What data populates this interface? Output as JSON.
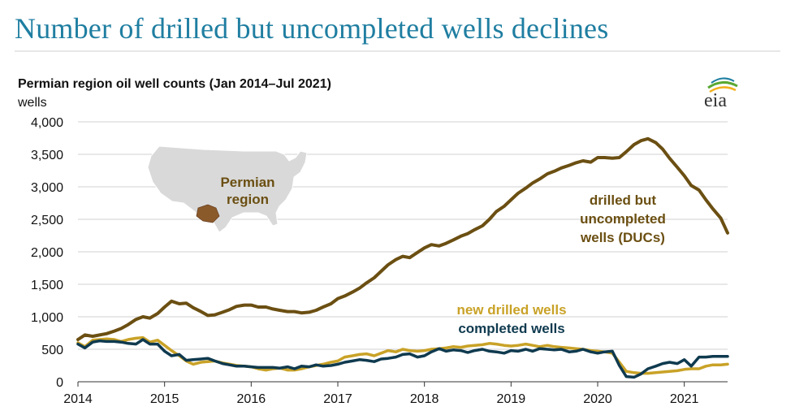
{
  "headline": "Number of drilled but uncompleted wells declines",
  "logo": "eia",
  "colors": {
    "headline": "#1f7ea1",
    "duc": "#6b4f12",
    "new_drilled": "#c9a227",
    "completed": "#0f3a4f",
    "map_fill": "#d9d9d9",
    "permian_fill": "#8b5a2b",
    "grid": "#d0d0d0"
  },
  "map": {
    "label_line1": "Permian",
    "label_line2": "region",
    "icon": "us-map-icon"
  },
  "chart_data": {
    "type": "line",
    "title": "Permian region oil well counts (Jan 2014–Jul 2021)",
    "ylabel": "wells",
    "xlabel": "",
    "xlim": [
      2014,
      2021.5
    ],
    "ylim": [
      0,
      4000
    ],
    "y_ticks": [
      0,
      500,
      1000,
      1500,
      2000,
      2500,
      3000,
      3500,
      4000
    ],
    "y_tick_labels": [
      "0",
      "500",
      "1,000",
      "1,500",
      "2,000",
      "2,500",
      "3,000",
      "3,500",
      "4,000"
    ],
    "x_ticks": [
      2014,
      2015,
      2016,
      2017,
      2018,
      2019,
      2020,
      2021
    ],
    "x_tick_labels": [
      "2014",
      "2015",
      "2016",
      "2017",
      "2018",
      "2019",
      "2020",
      "2021"
    ],
    "grid": true,
    "series": [
      {
        "name": "drilled but uncompleted wells (DUCs)",
        "label_lines": [
          "drilled but",
          "uncompleted",
          "wells (DUCs)"
        ],
        "color": "#6b4f12",
        "points": [
          [
            2014.0,
            650
          ],
          [
            2014.08,
            720
          ],
          [
            2014.17,
            700
          ],
          [
            2014.25,
            720
          ],
          [
            2014.33,
            740
          ],
          [
            2014.42,
            780
          ],
          [
            2014.5,
            820
          ],
          [
            2014.58,
            880
          ],
          [
            2014.67,
            960
          ],
          [
            2014.75,
            1000
          ],
          [
            2014.83,
            980
          ],
          [
            2014.92,
            1050
          ],
          [
            2015.0,
            1150
          ],
          [
            2015.08,
            1240
          ],
          [
            2015.17,
            1200
          ],
          [
            2015.25,
            1210
          ],
          [
            2015.33,
            1140
          ],
          [
            2015.42,
            1080
          ],
          [
            2015.5,
            1020
          ],
          [
            2015.58,
            1030
          ],
          [
            2015.67,
            1070
          ],
          [
            2015.75,
            1110
          ],
          [
            2015.83,
            1160
          ],
          [
            2015.92,
            1180
          ],
          [
            2016.0,
            1180
          ],
          [
            2016.08,
            1150
          ],
          [
            2016.17,
            1150
          ],
          [
            2016.25,
            1120
          ],
          [
            2016.33,
            1100
          ],
          [
            2016.42,
            1080
          ],
          [
            2016.5,
            1080
          ],
          [
            2016.58,
            1060
          ],
          [
            2016.67,
            1070
          ],
          [
            2016.75,
            1100
          ],
          [
            2016.83,
            1150
          ],
          [
            2016.92,
            1200
          ],
          [
            2017.0,
            1280
          ],
          [
            2017.08,
            1320
          ],
          [
            2017.17,
            1380
          ],
          [
            2017.25,
            1440
          ],
          [
            2017.33,
            1520
          ],
          [
            2017.42,
            1600
          ],
          [
            2017.5,
            1700
          ],
          [
            2017.58,
            1800
          ],
          [
            2017.67,
            1880
          ],
          [
            2017.75,
            1930
          ],
          [
            2017.83,
            1910
          ],
          [
            2017.92,
            1990
          ],
          [
            2018.0,
            2060
          ],
          [
            2018.08,
            2110
          ],
          [
            2018.17,
            2090
          ],
          [
            2018.25,
            2130
          ],
          [
            2018.33,
            2180
          ],
          [
            2018.42,
            2240
          ],
          [
            2018.5,
            2280
          ],
          [
            2018.58,
            2340
          ],
          [
            2018.67,
            2400
          ],
          [
            2018.75,
            2500
          ],
          [
            2018.83,
            2620
          ],
          [
            2018.92,
            2700
          ],
          [
            2019.0,
            2800
          ],
          [
            2019.08,
            2900
          ],
          [
            2019.17,
            2980
          ],
          [
            2019.25,
            3060
          ],
          [
            2019.33,
            3120
          ],
          [
            2019.42,
            3200
          ],
          [
            2019.5,
            3240
          ],
          [
            2019.58,
            3290
          ],
          [
            2019.67,
            3330
          ],
          [
            2019.75,
            3370
          ],
          [
            2019.83,
            3400
          ],
          [
            2019.92,
            3380
          ],
          [
            2020.0,
            3450
          ],
          [
            2020.08,
            3450
          ],
          [
            2020.17,
            3440
          ],
          [
            2020.25,
            3450
          ],
          [
            2020.33,
            3540
          ],
          [
            2020.42,
            3650
          ],
          [
            2020.5,
            3710
          ],
          [
            2020.58,
            3740
          ],
          [
            2020.67,
            3680
          ],
          [
            2020.75,
            3580
          ],
          [
            2020.83,
            3440
          ],
          [
            2020.92,
            3300
          ],
          [
            2021.0,
            3170
          ],
          [
            2021.08,
            3020
          ],
          [
            2021.17,
            2950
          ],
          [
            2021.25,
            2800
          ],
          [
            2021.33,
            2660
          ],
          [
            2021.42,
            2520
          ],
          [
            2021.5,
            2290
          ]
        ]
      },
      {
        "name": "new drilled wells",
        "label_lines": [
          "new drilled wells"
        ],
        "color": "#c9a227",
        "points": [
          [
            2014.0,
            600
          ],
          [
            2014.08,
            540
          ],
          [
            2014.17,
            640
          ],
          [
            2014.25,
            650
          ],
          [
            2014.33,
            660
          ],
          [
            2014.42,
            650
          ],
          [
            2014.5,
            620
          ],
          [
            2014.58,
            650
          ],
          [
            2014.67,
            670
          ],
          [
            2014.75,
            680
          ],
          [
            2014.83,
            610
          ],
          [
            2014.92,
            640
          ],
          [
            2015.0,
            560
          ],
          [
            2015.08,
            480
          ],
          [
            2015.17,
            400
          ],
          [
            2015.25,
            320
          ],
          [
            2015.33,
            270
          ],
          [
            2015.42,
            300
          ],
          [
            2015.5,
            310
          ],
          [
            2015.58,
            320
          ],
          [
            2015.67,
            290
          ],
          [
            2015.75,
            270
          ],
          [
            2015.83,
            250
          ],
          [
            2015.92,
            240
          ],
          [
            2016.0,
            230
          ],
          [
            2016.08,
            200
          ],
          [
            2016.17,
            180
          ],
          [
            2016.25,
            200
          ],
          [
            2016.33,
            210
          ],
          [
            2016.42,
            180
          ],
          [
            2016.5,
            180
          ],
          [
            2016.58,
            200
          ],
          [
            2016.67,
            230
          ],
          [
            2016.75,
            250
          ],
          [
            2016.83,
            270
          ],
          [
            2016.92,
            300
          ],
          [
            2017.0,
            320
          ],
          [
            2017.08,
            380
          ],
          [
            2017.17,
            400
          ],
          [
            2017.25,
            420
          ],
          [
            2017.33,
            430
          ],
          [
            2017.42,
            400
          ],
          [
            2017.5,
            440
          ],
          [
            2017.58,
            480
          ],
          [
            2017.67,
            460
          ],
          [
            2017.75,
            500
          ],
          [
            2017.83,
            480
          ],
          [
            2017.92,
            470
          ],
          [
            2018.0,
            480
          ],
          [
            2018.08,
            500
          ],
          [
            2018.17,
            510
          ],
          [
            2018.25,
            520
          ],
          [
            2018.33,
            540
          ],
          [
            2018.42,
            530
          ],
          [
            2018.5,
            550
          ],
          [
            2018.58,
            560
          ],
          [
            2018.67,
            570
          ],
          [
            2018.75,
            590
          ],
          [
            2018.83,
            580
          ],
          [
            2018.92,
            560
          ],
          [
            2019.0,
            550
          ],
          [
            2019.08,
            560
          ],
          [
            2019.17,
            580
          ],
          [
            2019.25,
            560
          ],
          [
            2019.33,
            540
          ],
          [
            2019.42,
            560
          ],
          [
            2019.5,
            540
          ],
          [
            2019.58,
            530
          ],
          [
            2019.67,
            520
          ],
          [
            2019.75,
            510
          ],
          [
            2019.83,
            500
          ],
          [
            2019.92,
            480
          ],
          [
            2020.0,
            470
          ],
          [
            2020.08,
            460
          ],
          [
            2020.17,
            440
          ],
          [
            2020.25,
            300
          ],
          [
            2020.33,
            160
          ],
          [
            2020.42,
            140
          ],
          [
            2020.5,
            130
          ],
          [
            2020.58,
            130
          ],
          [
            2020.67,
            140
          ],
          [
            2020.75,
            150
          ],
          [
            2020.83,
            160
          ],
          [
            2020.92,
            170
          ],
          [
            2021.0,
            190
          ],
          [
            2021.08,
            200
          ],
          [
            2021.17,
            200
          ],
          [
            2021.25,
            240
          ],
          [
            2021.33,
            260
          ],
          [
            2021.42,
            260
          ],
          [
            2021.5,
            270
          ]
        ]
      },
      {
        "name": "completed wells",
        "label_lines": [
          "completed wells"
        ],
        "color": "#0f3a4f",
        "points": [
          [
            2014.0,
            580
          ],
          [
            2014.08,
            520
          ],
          [
            2014.17,
            610
          ],
          [
            2014.25,
            630
          ],
          [
            2014.33,
            620
          ],
          [
            2014.42,
            620
          ],
          [
            2014.5,
            610
          ],
          [
            2014.58,
            590
          ],
          [
            2014.67,
            580
          ],
          [
            2014.75,
            650
          ],
          [
            2014.83,
            580
          ],
          [
            2014.92,
            580
          ],
          [
            2015.0,
            470
          ],
          [
            2015.08,
            400
          ],
          [
            2015.17,
            420
          ],
          [
            2015.25,
            330
          ],
          [
            2015.33,
            340
          ],
          [
            2015.42,
            350
          ],
          [
            2015.5,
            360
          ],
          [
            2015.58,
            320
          ],
          [
            2015.67,
            280
          ],
          [
            2015.75,
            260
          ],
          [
            2015.83,
            240
          ],
          [
            2015.92,
            240
          ],
          [
            2016.0,
            230
          ],
          [
            2016.08,
            220
          ],
          [
            2016.17,
            220
          ],
          [
            2016.25,
            220
          ],
          [
            2016.33,
            210
          ],
          [
            2016.42,
            230
          ],
          [
            2016.5,
            200
          ],
          [
            2016.58,
            240
          ],
          [
            2016.67,
            230
          ],
          [
            2016.75,
            260
          ],
          [
            2016.83,
            240
          ],
          [
            2016.92,
            250
          ],
          [
            2017.0,
            270
          ],
          [
            2017.08,
            300
          ],
          [
            2017.17,
            320
          ],
          [
            2017.25,
            340
          ],
          [
            2017.33,
            330
          ],
          [
            2017.42,
            310
          ],
          [
            2017.5,
            350
          ],
          [
            2017.58,
            360
          ],
          [
            2017.67,
            380
          ],
          [
            2017.75,
            420
          ],
          [
            2017.83,
            430
          ],
          [
            2017.92,
            380
          ],
          [
            2018.0,
            400
          ],
          [
            2018.08,
            460
          ],
          [
            2018.17,
            510
          ],
          [
            2018.25,
            470
          ],
          [
            2018.33,
            490
          ],
          [
            2018.42,
            480
          ],
          [
            2018.5,
            450
          ],
          [
            2018.58,
            480
          ],
          [
            2018.67,
            500
          ],
          [
            2018.75,
            470
          ],
          [
            2018.83,
            460
          ],
          [
            2018.92,
            440
          ],
          [
            2019.0,
            480
          ],
          [
            2019.08,
            470
          ],
          [
            2019.17,
            500
          ],
          [
            2019.25,
            470
          ],
          [
            2019.33,
            510
          ],
          [
            2019.42,
            500
          ],
          [
            2019.5,
            490
          ],
          [
            2019.58,
            500
          ],
          [
            2019.67,
            460
          ],
          [
            2019.75,
            470
          ],
          [
            2019.83,
            500
          ],
          [
            2019.92,
            460
          ],
          [
            2020.0,
            440
          ],
          [
            2020.08,
            460
          ],
          [
            2020.17,
            470
          ],
          [
            2020.25,
            250
          ],
          [
            2020.33,
            80
          ],
          [
            2020.42,
            70
          ],
          [
            2020.5,
            120
          ],
          [
            2020.58,
            200
          ],
          [
            2020.67,
            240
          ],
          [
            2020.75,
            280
          ],
          [
            2020.83,
            300
          ],
          [
            2020.92,
            280
          ],
          [
            2021.0,
            340
          ],
          [
            2021.08,
            240
          ],
          [
            2021.17,
            380
          ],
          [
            2021.25,
            380
          ],
          [
            2021.33,
            390
          ],
          [
            2021.42,
            390
          ],
          [
            2021.5,
            390
          ]
        ]
      }
    ]
  }
}
